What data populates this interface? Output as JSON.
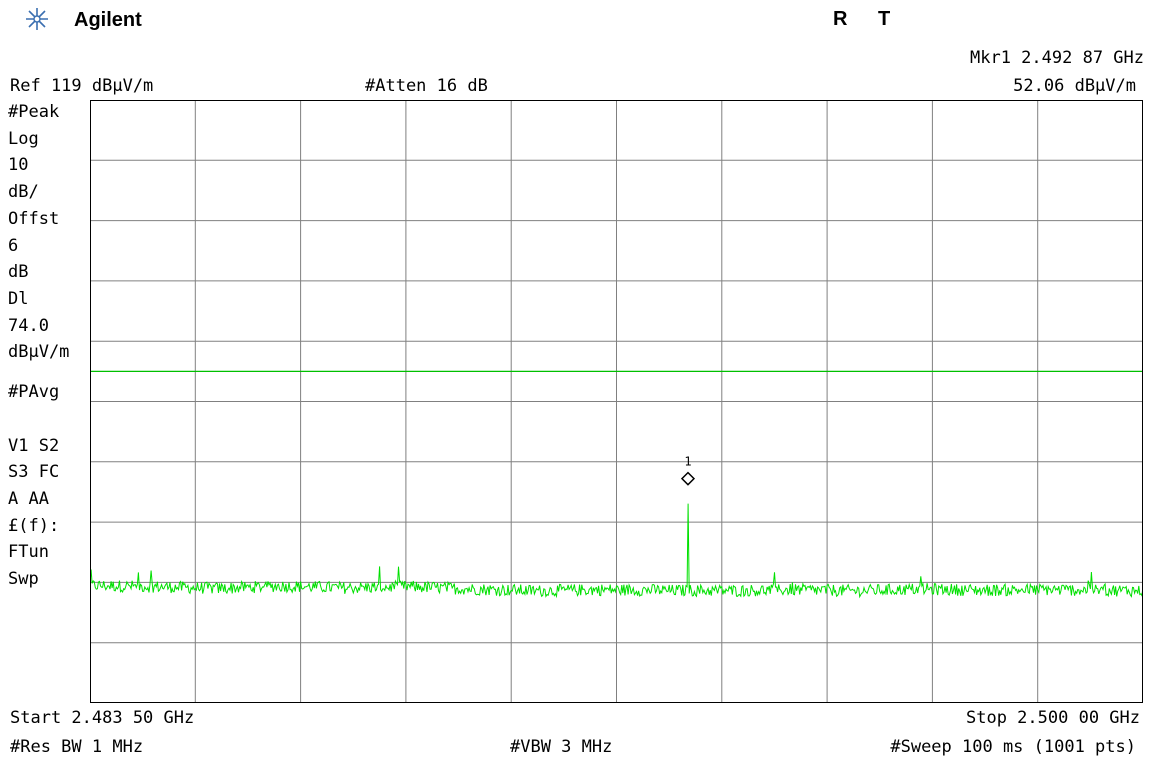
{
  "header": {
    "brand": "Agilent",
    "flag_r": "R",
    "flag_t": "T",
    "marker_freq": "Mkr1  2.492 87 GHz",
    "marker_amp": "52.06 dBμV/m",
    "ref_level": "Ref 119 dBμV/m",
    "atten": "#Atten 16 dB"
  },
  "left_panel": {
    "lines": [
      "#Peak",
      "Log",
      "10",
      "dB/",
      "Offst",
      "6",
      "dB",
      "Dl",
      "74.0",
      "dBμV/m",
      "#PAvg",
      "",
      "V1  S2",
      "S3  FC",
      "A  AA",
      "£(f):",
      "FTun",
      "Swp"
    ]
  },
  "footer": {
    "start": "Start 2.483 50 GHz",
    "stop": "Stop 2.500 00 GHz",
    "rbw": "#Res BW 1 MHz",
    "vbw": "#VBW 3 MHz",
    "sweep": "#Sweep 100 ms (1001 pts)"
  },
  "chart_data": {
    "type": "line",
    "x_unit": "GHz",
    "y_unit": "dBμV/m",
    "xlim": [
      2.4835,
      2.5
    ],
    "ylim": [
      19,
      119
    ],
    "grid": true,
    "display_line": 74.0,
    "marker": {
      "label": "1",
      "x": 2.49287,
      "y": 52.06
    },
    "series": [
      {
        "color": "#00e000",
        "x": [
          2.4835,
          2.4845,
          2.4855,
          2.4865,
          2.4875,
          2.4885,
          2.4895,
          2.4905,
          2.4915,
          2.4925,
          2.49287,
          2.4935,
          2.4945,
          2.4955,
          2.4965,
          2.4975,
          2.4985,
          2.4995,
          2.5
        ],
        "y": [
          38.5,
          38.3,
          38.0,
          38.4,
          38.1,
          38.3,
          37.9,
          37.6,
          37.8,
          37.7,
          52.06,
          37.6,
          37.8,
          37.6,
          37.9,
          37.7,
          37.8,
          37.7,
          37.6
        ]
      }
    ]
  },
  "colors": {
    "grid": "#808080",
    "trace": "#00e000",
    "display_line": "#00c000",
    "frame": "#000000"
  }
}
